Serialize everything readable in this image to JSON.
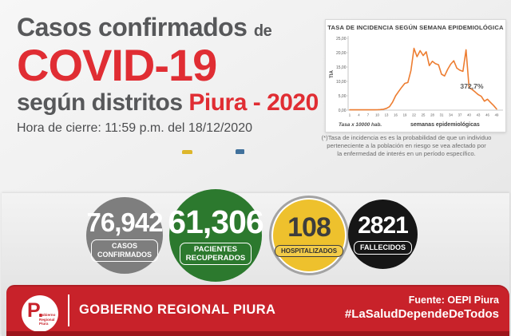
{
  "header": {
    "title_line1": "Casos confirmados",
    "title_line1_small": "de",
    "title_line2": "COVID-19",
    "title_line3": "según distritos",
    "title_line3_accent": "Piura - 2020",
    "closing_time": "Hora de cierre: 11:59 p.m. del 18/12/2020"
  },
  "chart_data": {
    "type": "line",
    "title": "TASA DE INCIDENCIA SEGÚN SEMANA EPIDEMIOLÓGICA",
    "xlabel": "semanas epidemiológicas",
    "ylabel": "TIA",
    "x_note": "Tasa x 10000 hab.",
    "annotation": "372,7%",
    "ylim": [
      0,
      25
    ],
    "grid": false,
    "legend": "none",
    "line_color": "#ED7D31",
    "ytick_labels": [
      "25,00",
      "20,00",
      "15,00",
      "10,00",
      "5,00",
      "0,00"
    ],
    "ytick_values": [
      25,
      20,
      15,
      10,
      5,
      0
    ],
    "xticks": [
      1,
      4,
      7,
      10,
      13,
      16,
      19,
      22,
      25,
      28,
      31,
      34,
      37,
      40,
      43,
      46,
      49
    ],
    "x": [
      1,
      2,
      3,
      4,
      5,
      6,
      7,
      8,
      9,
      10,
      11,
      12,
      13,
      14,
      15,
      16,
      17,
      18,
      19,
      20,
      21,
      22,
      23,
      24,
      25,
      26,
      27,
      28,
      29,
      30,
      31,
      32,
      33,
      34,
      35,
      36,
      37,
      38,
      39,
      40,
      41,
      42,
      43,
      44,
      45,
      46,
      47,
      48,
      49
    ],
    "values": [
      0.1,
      0.1,
      0.1,
      0.1,
      0.1,
      0.1,
      0.1,
      0.1,
      0.1,
      0.15,
      0.2,
      0.3,
      0.6,
      1.2,
      2.8,
      5.0,
      6.5,
      8.0,
      9.3,
      9.6,
      13.8,
      21.5,
      18.6,
      20.7,
      19.0,
      20.3,
      15.5,
      17.0,
      16.2,
      15.8,
      12.5,
      11.9,
      14.2,
      16.0,
      17.2,
      14.6,
      13.9,
      13.5,
      21.0,
      7.8,
      7.2,
      6.3,
      5.4,
      4.8,
      3.1,
      3.8,
      2.7,
      1.6,
      0.4
    ]
  },
  "footnote": {
    "lines": [
      "(*)Tasa de incidencia es es la probabilidad de que un individuo",
      "perteneciente a la población en riesgo se vea afectado por",
      "la enfermedad de interés en un período específico."
    ]
  },
  "stats": [
    {
      "value": "76,942",
      "label_lines": [
        "CASOS",
        "CONFIRMADOS"
      ],
      "circle_color": "#7e7e7e"
    },
    {
      "value": "61,306",
      "label_lines": [
        "PACIENTES",
        "RECUPERADOS"
      ],
      "circle_color": "#2c792e"
    },
    {
      "value": "108",
      "label_lines": [
        "HOSPITALIZADOS"
      ],
      "circle_color": "#eec12d"
    },
    {
      "value": "2821",
      "label_lines": [
        "FALLECIDOS"
      ],
      "circle_color": "#161616"
    }
  ],
  "footer": {
    "org_name": "GOBIERNO REGIONAL PIURA",
    "source": "Fuente: OEPI Piura",
    "hashtag": "#LaSaludDependeDeTodos",
    "logo_monogram": "P.",
    "logo_sub_lines": [
      "Gobierno",
      "Regional",
      "Piura"
    ]
  },
  "colors": {
    "accent_red": "#e02d33",
    "footer_red": "#c8222a",
    "title_gray": "#57585a",
    "chart_line_orange": "#ED7D31"
  }
}
